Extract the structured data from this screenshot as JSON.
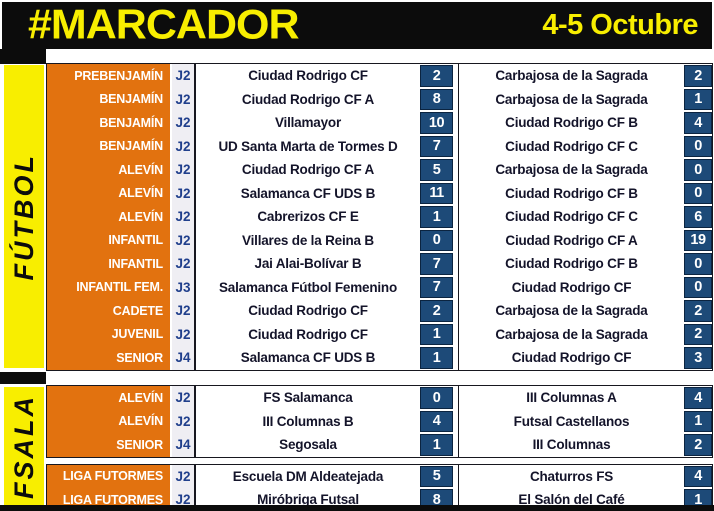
{
  "header": {
    "title": "#MARCADOR",
    "date": "4-5 Octubre"
  },
  "colors": {
    "header_bg": "#0c0c0c",
    "accent_yellow": "#f8ee00",
    "category_orange": "#e2720f",
    "score_navy": "#1d4a78",
    "jornada_blue": "#203f8c",
    "jornada_bg": "#efeef3"
  },
  "sections": [
    {
      "band_label": "FÚTBOL",
      "blocks": [
        {
          "rows": [
            {
              "category": "PREBENJAMÍN",
              "jornada": "J2",
              "home": "Ciudad Rodrigo CF",
              "home_score": "2",
              "away": "Carbajosa de la Sagrada",
              "away_score": "2"
            },
            {
              "category": "BENJAMÍN",
              "jornada": "J2",
              "home": "Ciudad Rodrigo CF A",
              "home_score": "8",
              "away": "Carbajosa de la Sagrada",
              "away_score": "1"
            },
            {
              "category": "BENJAMÍN",
              "jornada": "J2",
              "home": "Villamayor",
              "home_score": "10",
              "away": "Ciudad Rodrigo CF B",
              "away_score": "4"
            },
            {
              "category": "BENJAMÍN",
              "jornada": "J2",
              "home": "UD Santa Marta de Tormes D",
              "home_score": "7",
              "away": "Ciudad Rodrigo CF C",
              "away_score": "0"
            },
            {
              "category": "ALEVÍN",
              "jornada": "J2",
              "home": "Ciudad Rodrigo CF A",
              "home_score": "5",
              "away": "Carbajosa de la Sagrada",
              "away_score": "0"
            },
            {
              "category": "ALEVÍN",
              "jornada": "J2",
              "home": "Salamanca CF UDS B",
              "home_score": "11",
              "away": "Ciudad Rodrigo CF B",
              "away_score": "0"
            },
            {
              "category": "ALEVÍN",
              "jornada": "J2",
              "home": "Cabrerizos CF E",
              "home_score": "1",
              "away": "Ciudad Rodrigo CF C",
              "away_score": "6"
            },
            {
              "category": "INFANTIL",
              "jornada": "J2",
              "home": "Villares de la Reina B",
              "home_score": "0",
              "away": "Ciudad Rodrigo CF A",
              "away_score": "19"
            },
            {
              "category": "INFANTIL",
              "jornada": "J2",
              "home": "Jai Alai-Bolívar B",
              "home_score": "7",
              "away": "Ciudad Rodrigo CF B",
              "away_score": "0"
            },
            {
              "category": "INFANTIL FEM.",
              "jornada": "J3",
              "home": "Salamanca Fútbol Femenino",
              "home_score": "7",
              "away": "Ciudad Rodrigo CF",
              "away_score": "0"
            },
            {
              "category": "CADETE",
              "jornada": "J2",
              "home": "Ciudad Rodrigo CF",
              "home_score": "2",
              "away": "Carbajosa de la Sagrada",
              "away_score": "2"
            },
            {
              "category": "JUVENIL",
              "jornada": "J2",
              "home": "Ciudad Rodrigo CF",
              "home_score": "1",
              "away": "Carbajosa de la Sagrada",
              "away_score": "2"
            },
            {
              "category": "SENIOR",
              "jornada": "J4",
              "home": "Salamanca CF UDS B",
              "home_score": "1",
              "away": "Ciudad Rodrigo CF",
              "away_score": "3"
            }
          ]
        }
      ]
    },
    {
      "band_label": "FSALA",
      "blocks": [
        {
          "rows": [
            {
              "category": "ALEVÍN",
              "jornada": "J2",
              "home": "FS Salamanca",
              "home_score": "0",
              "away": "III Columnas A",
              "away_score": "4"
            },
            {
              "category": "ALEVÍN",
              "jornada": "J2",
              "home": "III Columnas B",
              "home_score": "4",
              "away": "Futsal Castellanos",
              "away_score": "1"
            },
            {
              "category": "SENIOR",
              "jornada": "J4",
              "home": "Segosala",
              "home_score": "1",
              "away": "III Columnas",
              "away_score": "2"
            }
          ]
        },
        {
          "rows": [
            {
              "category": "LIGA FUTORMES",
              "jornada": "J2",
              "home": "Escuela DM Aldeatejada",
              "home_score": "5",
              "away": "Chaturros FS",
              "away_score": "4"
            },
            {
              "category": "LIGA FUTORMES",
              "jornada": "J2",
              "home": "Miróbriga Futsal",
              "home_score": "8",
              "away": "El Salón del Café",
              "away_score": "1"
            }
          ]
        }
      ]
    }
  ]
}
